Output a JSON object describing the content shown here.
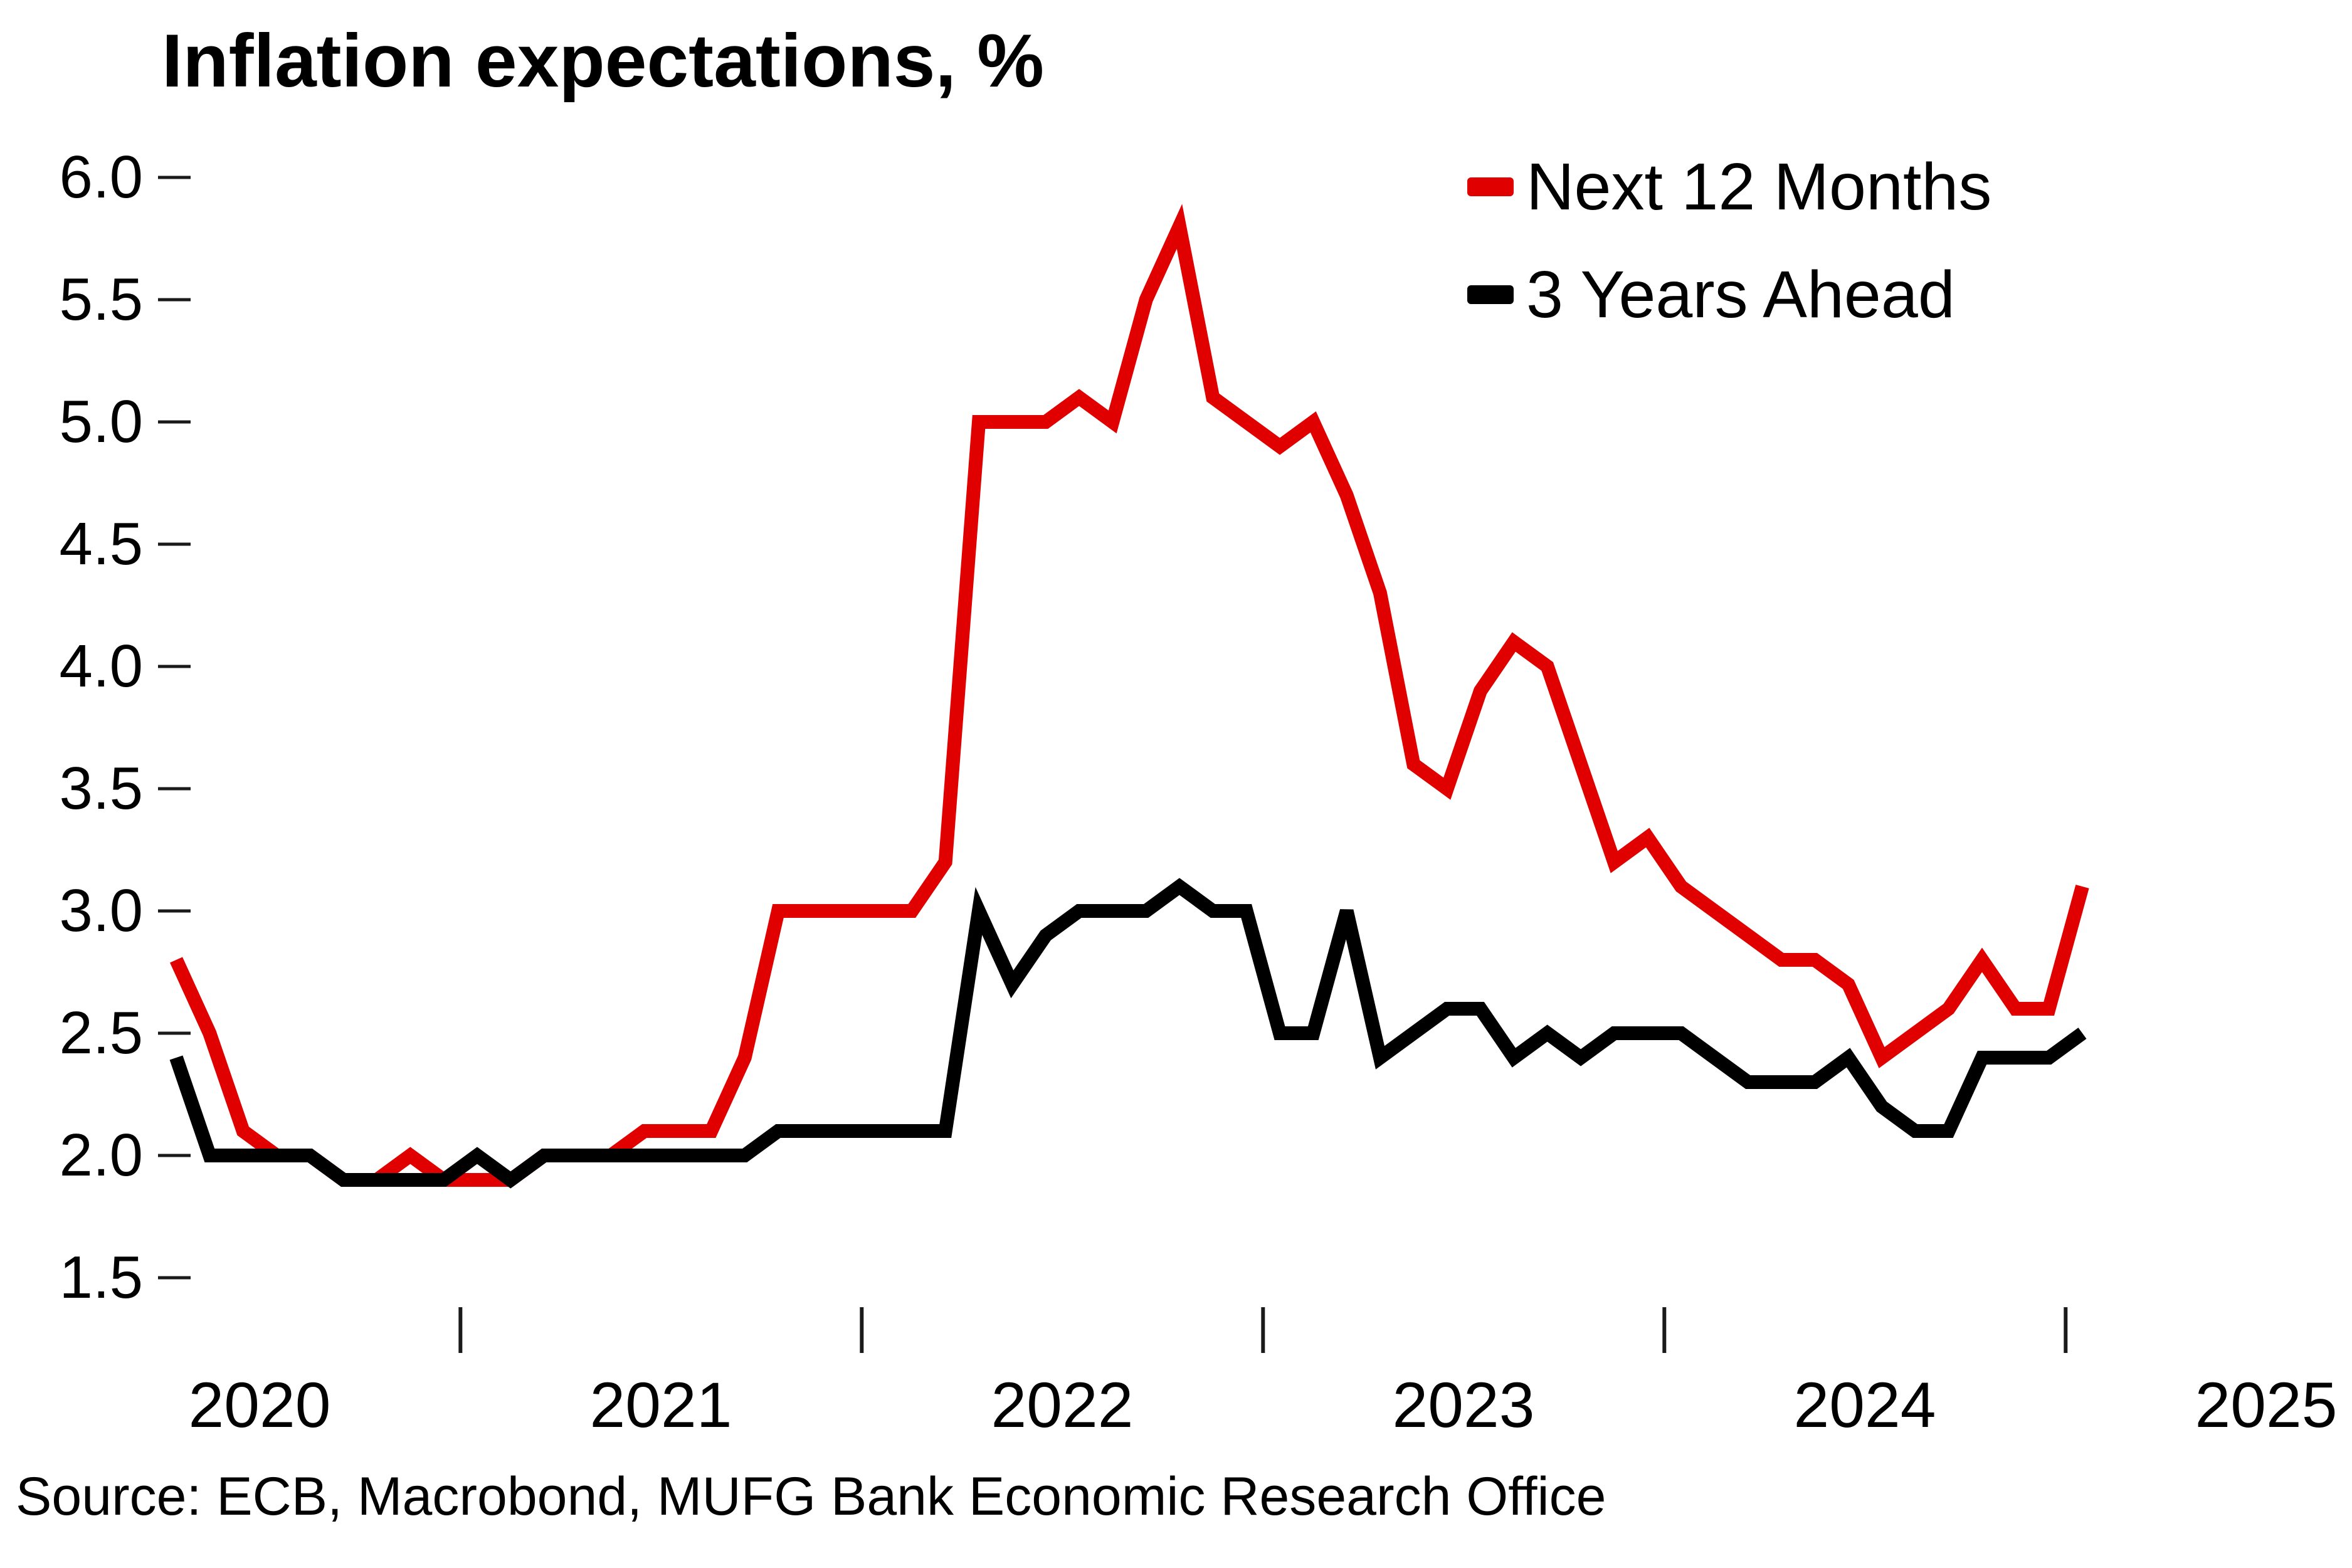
{
  "title": "Inflation expectations, %",
  "legend": [
    {
      "label": "Next 12 Months",
      "color": "#e00000"
    },
    {
      "label": "3 Years Ahead",
      "color": "#000000"
    }
  ],
  "source": "Source: ECB, Macrobond, MUFG Bank Economic Research Office",
  "chart_data": {
    "type": "line",
    "title": "Inflation expectations, %",
    "x_start": "2020-04",
    "x_frequency": "monthly",
    "x_tick_years": [
      "2020",
      "2021",
      "2022",
      "2023",
      "2024",
      "2025"
    ],
    "ylim": [
      1.5,
      6.0
    ],
    "y_ticks": [
      1.5,
      2.0,
      2.5,
      3.0,
      3.5,
      4.0,
      4.5,
      5.0,
      5.5,
      6.0
    ],
    "grid": false,
    "legend_position": "top-right",
    "series": [
      {
        "name": "Next 12 Months",
        "color": "#e00000",
        "values": [
          2.8,
          2.5,
          2.1,
          2.0,
          2.0,
          1.9,
          1.9,
          2.0,
          1.9,
          1.9,
          1.9,
          2.0,
          2.0,
          2.0,
          2.1,
          2.1,
          2.1,
          2.4,
          3.0,
          3.0,
          3.0,
          3.0,
          3.0,
          3.2,
          5.0,
          5.0,
          5.0,
          5.1,
          5.0,
          5.5,
          5.8,
          5.1,
          5.0,
          4.9,
          5.0,
          4.7,
          4.3,
          3.6,
          3.5,
          3.9,
          4.1,
          4.0,
          3.6,
          3.2,
          3.3,
          3.1,
          3.0,
          2.9,
          2.8,
          2.8,
          2.7,
          2.4,
          2.5,
          2.6,
          2.8,
          2.6,
          2.6,
          3.1
        ]
      },
      {
        "name": "3 Years Ahead",
        "color": "#000000",
        "values": [
          2.4,
          2.0,
          2.0,
          2.0,
          2.0,
          1.9,
          1.9,
          1.9,
          1.9,
          2.0,
          1.9,
          2.0,
          2.0,
          2.0,
          2.0,
          2.0,
          2.0,
          2.0,
          2.1,
          2.1,
          2.1,
          2.1,
          2.1,
          2.1,
          3.0,
          2.7,
          2.9,
          3.0,
          3.0,
          3.0,
          3.1,
          3.0,
          3.0,
          2.5,
          2.5,
          3.0,
          2.4,
          2.5,
          2.6,
          2.6,
          2.4,
          2.5,
          2.4,
          2.5,
          2.5,
          2.5,
          2.4,
          2.3,
          2.3,
          2.3,
          2.4,
          2.2,
          2.1,
          2.1,
          2.4,
          2.4,
          2.4,
          2.5
        ]
      }
    ]
  }
}
